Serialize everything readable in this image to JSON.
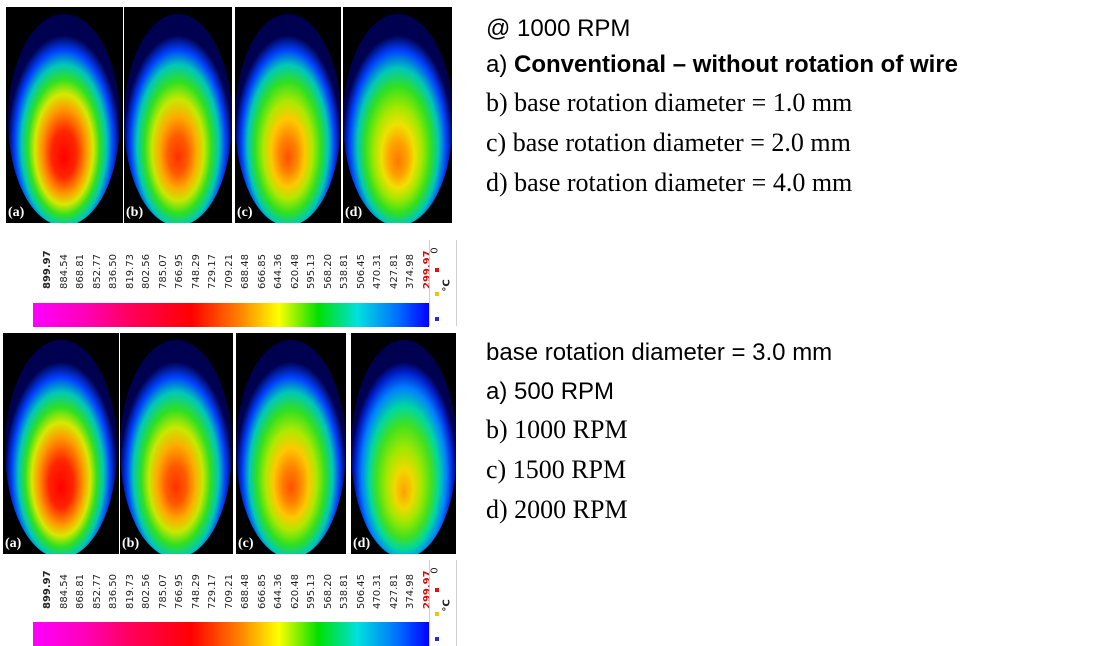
{
  "top_panels": [
    "(a)",
    "(b)",
    "(c)",
    "(d)"
  ],
  "bottom_panels": [
    "(a)",
    "(b)",
    "(c)",
    "(d)"
  ],
  "colorbar": {
    "ticks": [
      "899.97",
      "884.54",
      "868.81",
      "852.77",
      "836.50",
      "819.73",
      "802.56",
      "785.07",
      "766.95",
      "748.29",
      "729.17",
      "709.21",
      "688.48",
      "666.85",
      "644.36",
      "620.48",
      "595.13",
      "568.20",
      "538.81",
      "506.45",
      "470.31",
      "427.81",
      "374.98",
      "299.97"
    ],
    "zero": "0",
    "unit": "°C",
    "marker_colors": [
      "#e01010",
      "#f2c500",
      "#1f2fd8"
    ]
  },
  "top_legend": {
    "heading": "@ 1000 RPM",
    "a_prefix": "a) ",
    "a_text": "Conventional – without rotation of wire",
    "b": "b) base rotation diameter = 1.0 mm",
    "c": "c) base rotation diameter = 2.0 mm",
    "d": "d) base rotation diameter = 4.0 mm"
  },
  "bottom_legend": {
    "heading": "base rotation diameter = 3.0 mm",
    "a": "a)  500 RPM",
    "b": "b) 1000 RPM",
    "c": "c) 1500 RPM",
    "d": "d) 2000 RPM"
  },
  "colors": {
    "hot": "#ff0000",
    "mid": "#00cc00",
    "cold": "#0000ff",
    "background": "#000000"
  }
}
